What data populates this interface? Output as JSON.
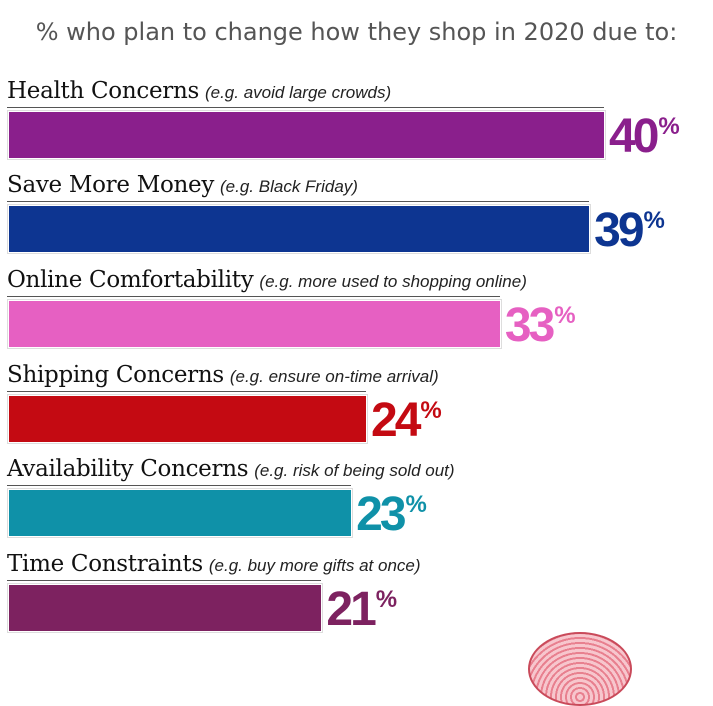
{
  "chart_data": {
    "type": "bar",
    "orientation": "horizontal",
    "title": "% who plan to change how they shop in 2020 due to:",
    "categories": [
      "Health Concerns",
      "Save More Money",
      "Online Comfortability",
      "Shipping Concerns",
      "Availability Concerns",
      "Time Constraints"
    ],
    "examples": [
      "(e.g. avoid large crowds)",
      "(e.g. Black Friday)",
      "(e.g. more used to shopping online)",
      "(e.g. ensure on-time arrival)",
      "(e.g. risk of being sold out)",
      "(e.g. buy more gifts at once)"
    ],
    "values": [
      40,
      39,
      33,
      24,
      23,
      21
    ],
    "value_suffix": "%",
    "colors": [
      "#8a1f8c",
      "#0d3591",
      "#e660c2",
      "#c40a12",
      "#0f91a8",
      "#7d2260"
    ],
    "xlim": [
      0,
      40
    ],
    "grid": false,
    "legend": "none"
  }
}
